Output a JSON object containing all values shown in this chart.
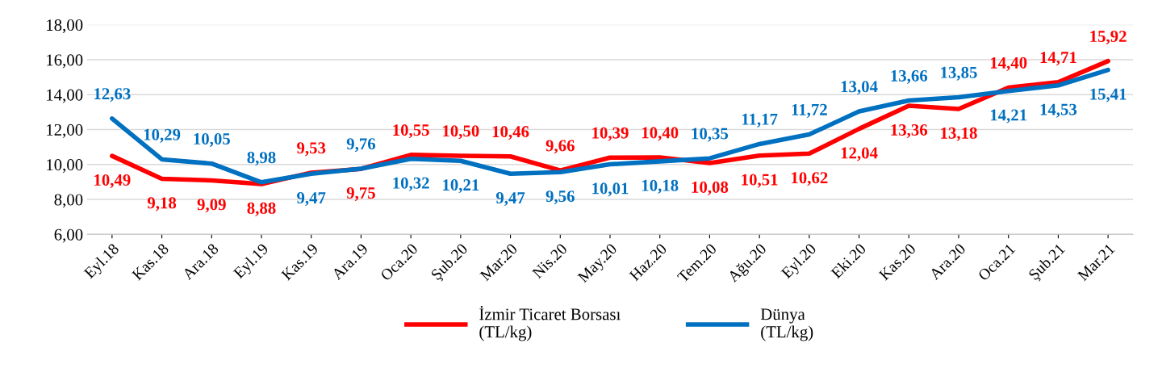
{
  "chart_data": {
    "type": "line",
    "categories": [
      "Eyl.18",
      "Kas.18",
      "Ara.18",
      "Eyl.19",
      "Kas.19",
      "Ara.19",
      "Oca.20",
      "Şub.20",
      "Mar.20",
      "Nis.20",
      "May.20",
      "Haz.20",
      "Tem.20",
      "Ağu.20",
      "Eyl.20",
      "Eki.20",
      "Kas.20",
      "Ara.20",
      "Oca.21",
      "Şub.21",
      "Mar.21"
    ],
    "series": [
      {
        "name": "İzmir Ticaret Borsası\n(TL/kg)",
        "color": "#ff0000",
        "values": [
          10.49,
          9.18,
          9.09,
          8.88,
          9.53,
          9.75,
          10.55,
          10.5,
          10.46,
          9.66,
          10.39,
          10.4,
          10.08,
          10.51,
          10.62,
          12.04,
          13.36,
          13.18,
          14.4,
          14.71,
          15.92
        ],
        "value_labels": [
          "10,49",
          "9,18",
          "9,09",
          "8,88",
          "9,53",
          "9,75",
          "10,55",
          "10,50",
          "10,46",
          "9,66",
          "10,39",
          "10,40",
          "10,08",
          "10,51",
          "10,62",
          "12,04",
          "13,36",
          "13,18",
          "14,40",
          "14,71",
          "15,92"
        ]
      },
      {
        "name": "Dünya\n(TL/kg)",
        "color": "#0070c0",
        "values": [
          12.63,
          10.29,
          10.05,
          8.98,
          9.47,
          9.76,
          10.32,
          10.21,
          9.47,
          9.56,
          10.01,
          10.18,
          10.35,
          11.17,
          11.72,
          13.04,
          13.66,
          13.85,
          14.21,
          14.53,
          15.41
        ],
        "value_labels": [
          "12,63",
          "10,29",
          "10,05",
          "8,98",
          "9,47",
          "9,76",
          "10,32",
          "10,21",
          "9,47",
          "9,56",
          "10,01",
          "10,18",
          "10,35",
          "11,17",
          "11,72",
          "13,04",
          "13,66",
          "13,85",
          "14,21",
          "14,53",
          "15,41"
        ]
      }
    ],
    "ylim": [
      6,
      18
    ],
    "yticks": [
      {
        "value": 6,
        "label": "6,00"
      },
      {
        "value": 8,
        "label": "8,00"
      },
      {
        "value": 10,
        "label": "10,00"
      },
      {
        "value": 12,
        "label": "12,00"
      },
      {
        "value": 14,
        "label": "14,00"
      },
      {
        "value": 16,
        "label": "16,00"
      },
      {
        "value": 18,
        "label": "18,00"
      }
    ],
    "grid": "y",
    "legend": "bottom",
    "marker": "none",
    "line_style": "solid"
  }
}
